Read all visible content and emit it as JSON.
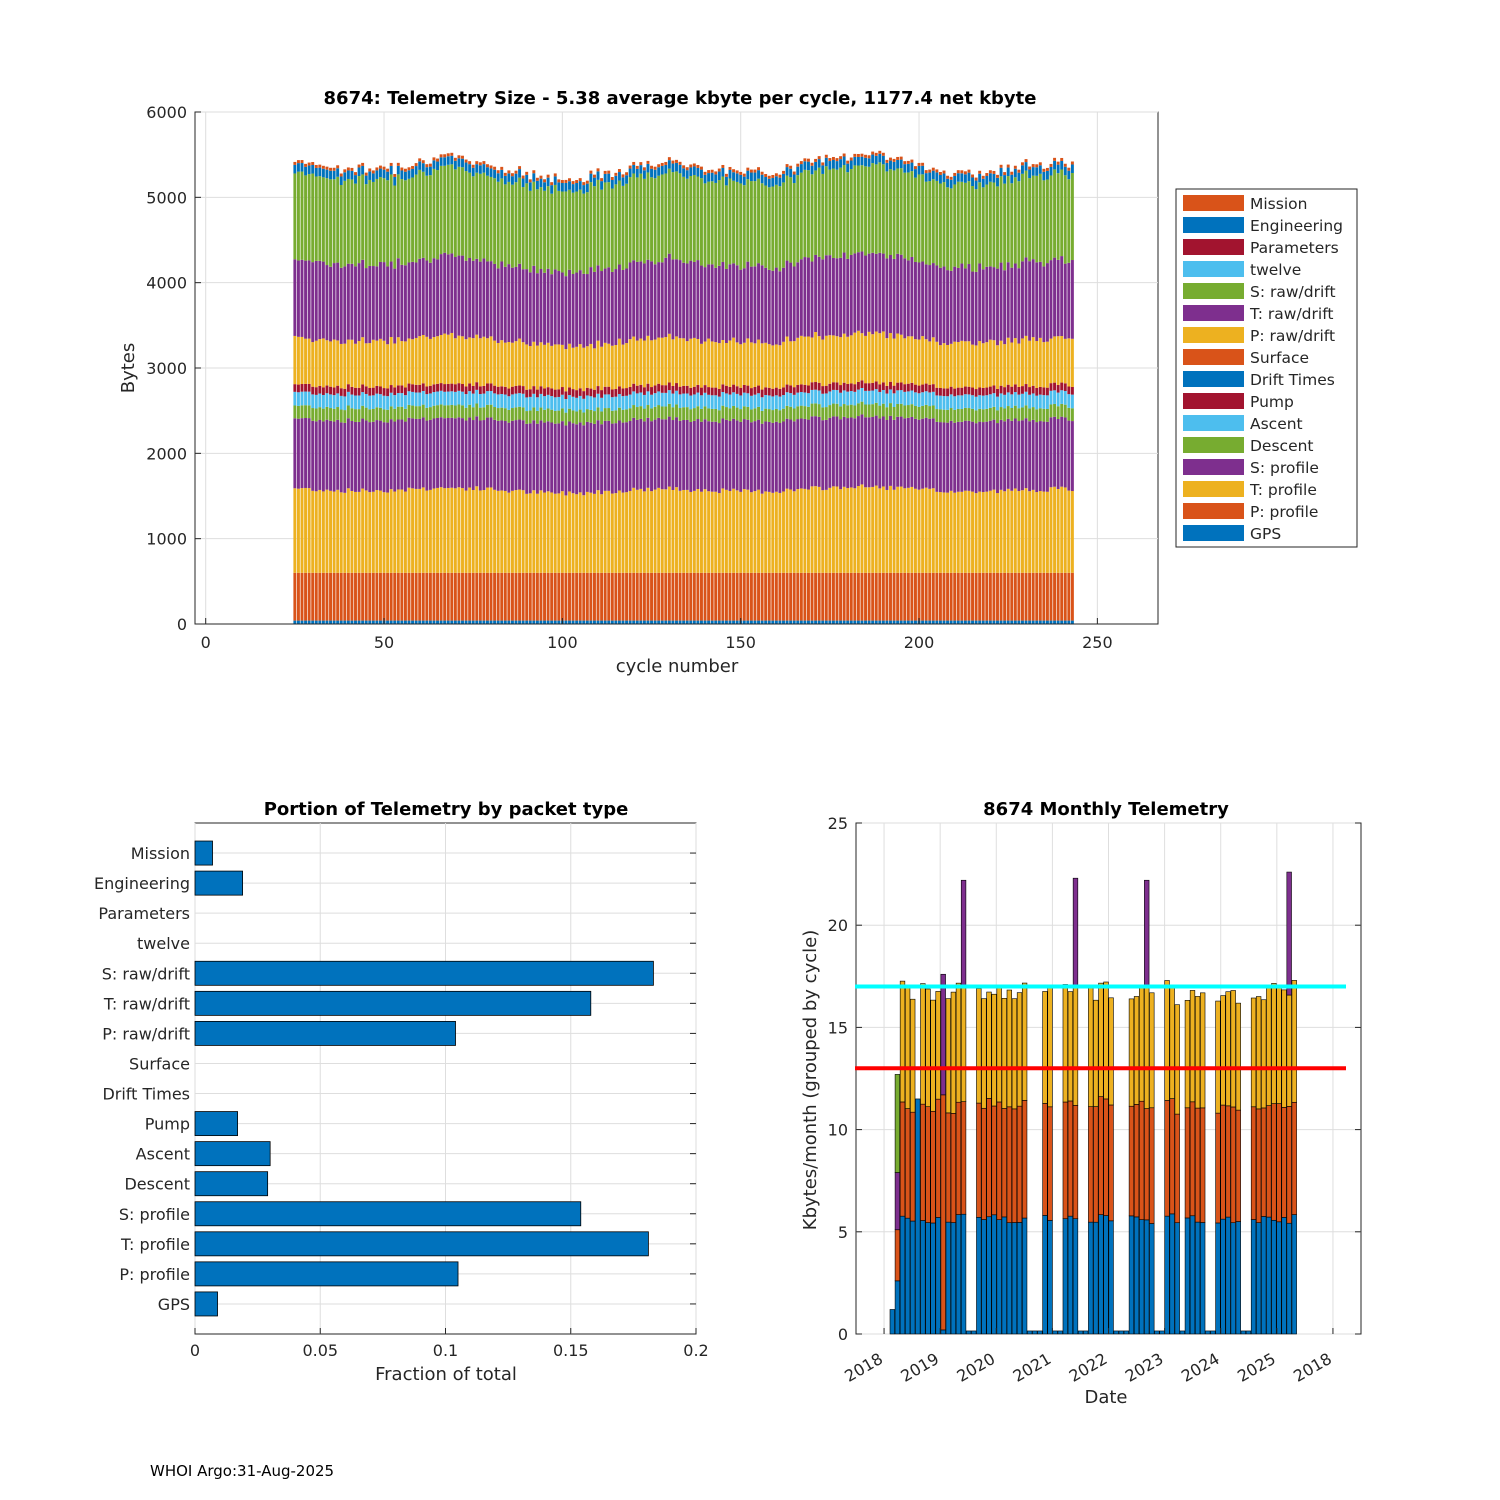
{
  "footer": "WHOI Argo:31-Aug-2025",
  "colors": {
    "mission": "#D95319",
    "engineering": "#0072BD",
    "parameters": "#A2142F",
    "twelve": "#4DBEEE",
    "s_raw": "#77AC30",
    "t_raw": "#7E2F8E",
    "p_raw": "#EDB120",
    "surface": "#D95319",
    "drift_times": "#0072BD",
    "pump": "#A2142F",
    "ascent": "#4DBEEE",
    "descent": "#77AC30",
    "s_profile": "#7E2F8E",
    "t_profile": "#EDB120",
    "p_profile": "#D95319",
    "gps": "#0072BD",
    "bar_fill": "#0072BD",
    "line_cyan": "#00FFFF",
    "line_red": "#FF0000"
  },
  "chart_data": [
    {
      "type": "bar",
      "stacked": true,
      "title": "8674: Telemetry Size - 5.38 average kbyte per cycle, 1177.4 net kbyte",
      "xlabel": "cycle number",
      "ylabel": "Bytes",
      "xlim": [
        -3,
        267
      ],
      "ylim": [
        0,
        6000
      ],
      "xticks": [
        "0",
        "50",
        "100",
        "150",
        "200",
        "250"
      ],
      "yticks": [
        "0",
        "1000",
        "2000",
        "3000",
        "4000",
        "5000",
        "6000"
      ],
      "cycle_range": [
        25,
        243
      ],
      "grid": true,
      "legend_position": "right",
      "legend": [
        "Mission",
        "Engineering",
        "Parameters",
        "twelve",
        "S: raw/drift",
        "T: raw/drift",
        "P: raw/drift",
        "Surface",
        "Drift Times",
        "Pump",
        "Ascent",
        "Descent",
        "S: profile",
        "T: profile",
        "P: profile",
        "GPS"
      ],
      "series": [
        {
          "name": "GPS",
          "typical": 40
        },
        {
          "name": "P: profile",
          "typical": 560
        },
        {
          "name": "T: profile",
          "typical": 970
        },
        {
          "name": "S: profile",
          "typical": 820
        },
        {
          "name": "Descent",
          "typical": 150
        },
        {
          "name": "Ascent",
          "typical": 160
        },
        {
          "name": "Pump",
          "typical": 90
        },
        {
          "name": "Drift Times",
          "typical": 0
        },
        {
          "name": "Surface",
          "typical": 0
        },
        {
          "name": "P: raw/drift",
          "typical": 540
        },
        {
          "name": "T: raw/drift",
          "typical": 900
        },
        {
          "name": "S: raw/drift",
          "typical": 1000
        },
        {
          "name": "twelve",
          "typical": 0
        },
        {
          "name": "Parameters",
          "typical": 0
        },
        {
          "name": "Engineering",
          "typical": 100
        },
        {
          "name": "Mission",
          "typical": 35
        }
      ],
      "total_min": 5000,
      "total_max": 5750
    },
    {
      "type": "bar",
      "orientation": "horizontal",
      "title": "Portion of Telemetry by packet type",
      "xlabel": "Fraction of total",
      "ylabel": "",
      "xlim": [
        0,
        0.2
      ],
      "xticks": [
        "0",
        "0.05",
        "0.1",
        "0.15",
        "0.2"
      ],
      "grid": true,
      "categories": [
        "Mission",
        "Engineering",
        "Parameters",
        "twelve",
        "S: raw/drift",
        "T: raw/drift",
        "P: raw/drift",
        "Surface",
        "Drift Times",
        "Pump",
        "Ascent",
        "Descent",
        "S: profile",
        "T: profile",
        "P: profile",
        "GPS"
      ],
      "values": [
        0.007,
        0.019,
        0,
        0,
        0.183,
        0.158,
        0.104,
        0,
        0,
        0.017,
        0.03,
        0.029,
        0.154,
        0.181,
        0.105,
        0.009
      ]
    },
    {
      "type": "bar",
      "stacked": true,
      "title": "8674 Monthly Telemetry",
      "xlabel": "Date",
      "ylabel": "Kbytes/month (grouped by cycle)",
      "ylim": [
        0,
        25
      ],
      "yticks": [
        "0",
        "5",
        "10",
        "15",
        "20",
        "25"
      ],
      "xticks": [
        "2018",
        "2019",
        "2020",
        "2021",
        "2022",
        "2023",
        "2024",
        "2025",
        "2018"
      ],
      "grid": true,
      "reference_lines": [
        {
          "name": "cyan",
          "y": 17
        },
        {
          "name": "red",
          "y": 13
        }
      ],
      "series": [
        {
          "name": "GPS / pressure (blue)",
          "typical": 5.6
        },
        {
          "name": "temperature (orange)",
          "typical": 5.6
        },
        {
          "name": "salinity (yellow)",
          "typical": 5.6
        },
        {
          "name": "extra (purple)",
          "typical": 0
        },
        {
          "name": "extra (green)",
          "typical": 0
        }
      ],
      "spikes": [
        {
          "month_index": 10,
          "top": 17.6,
          "color": "t_raw"
        },
        {
          "month_index": 14,
          "top": 22.2,
          "color": "t_raw"
        },
        {
          "month_index": 36,
          "top": 22.3,
          "color": "t_raw"
        },
        {
          "month_index": 50,
          "top": 22.2,
          "color": "t_raw"
        },
        {
          "month_index": 78,
          "top": 22.6,
          "color": "t_raw"
        }
      ]
    }
  ]
}
